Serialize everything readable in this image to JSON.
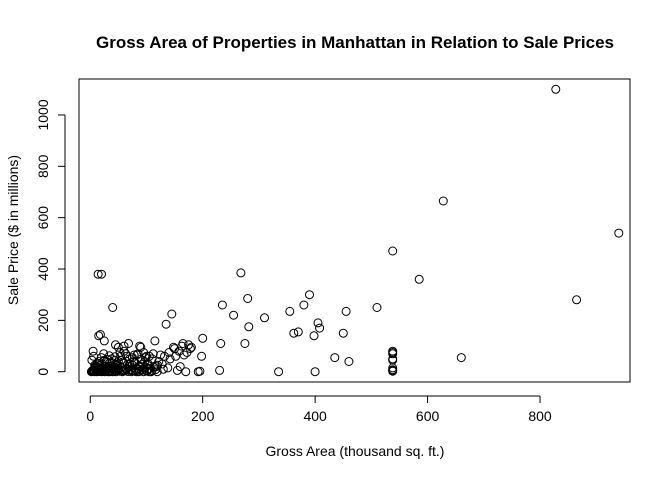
{
  "chart_data": {
    "type": "scatter",
    "title": "Gross Area of Properties in Manhattan in Relation to Sale Prices",
    "xlabel": "Gross Area (thousand sq. ft.)",
    "ylabel": "Sale Price ($ in millions)",
    "xlim": [
      -20,
      960
    ],
    "ylim": [
      -40,
      1140
    ],
    "xticks": [
      0,
      200,
      400,
      600,
      800
    ],
    "yticks": [
      0,
      200,
      400,
      600,
      800,
      1000
    ],
    "grid": false,
    "legend": "none",
    "marker": "open-circle",
    "points": [
      [
        2,
        0
      ],
      [
        3,
        2
      ],
      [
        4,
        5
      ],
      [
        5,
        1
      ],
      [
        6,
        8
      ],
      [
        7,
        3
      ],
      [
        8,
        0
      ],
      [
        9,
        12
      ],
      [
        10,
        4
      ],
      [
        11,
        6
      ],
      [
        12,
        0
      ],
      [
        13,
        18
      ],
      [
        14,
        2
      ],
      [
        15,
        9
      ],
      [
        16,
        1
      ],
      [
        17,
        25
      ],
      [
        18,
        3
      ],
      [
        19,
        14
      ],
      [
        20,
        0
      ],
      [
        21,
        7
      ],
      [
        22,
        30
      ],
      [
        23,
        2
      ],
      [
        24,
        10
      ],
      [
        25,
        5
      ],
      [
        26,
        0
      ],
      [
        27,
        20
      ],
      [
        28,
        3
      ],
      [
        29,
        40
      ],
      [
        30,
        8
      ],
      [
        31,
        1
      ],
      [
        32,
        15
      ],
      [
        33,
        4
      ],
      [
        34,
        0
      ],
      [
        35,
        22
      ],
      [
        36,
        6
      ],
      [
        37,
        12
      ],
      [
        38,
        2
      ],
      [
        39,
        35
      ],
      [
        40,
        0
      ],
      [
        41,
        9
      ],
      [
        42,
        18
      ],
      [
        43,
        3
      ],
      [
        44,
        45
      ],
      [
        45,
        7
      ],
      [
        46,
        0
      ],
      [
        47,
        28
      ],
      [
        48,
        5
      ],
      [
        50,
        11
      ],
      [
        52,
        2
      ],
      [
        54,
        60
      ],
      [
        55,
        16
      ],
      [
        57,
        0
      ],
      [
        58,
        6
      ],
      [
        60,
        33
      ],
      [
        62,
        4
      ],
      [
        63,
        70
      ],
      [
        65,
        12
      ],
      [
        67,
        1
      ],
      [
        68,
        20
      ],
      [
        70,
        50
      ],
      [
        72,
        8
      ],
      [
        73,
        0
      ],
      [
        75,
        26
      ],
      [
        77,
        3
      ],
      [
        78,
        40
      ],
      [
        80,
        14
      ],
      [
        82,
        0
      ],
      [
        83,
        65
      ],
      [
        85,
        9
      ],
      [
        87,
        22
      ],
      [
        88,
        2
      ],
      [
        90,
        48
      ],
      [
        92,
        6
      ],
      [
        93,
        30
      ],
      [
        95,
        0
      ],
      [
        96,
        15
      ],
      [
        98,
        55
      ],
      [
        100,
        4
      ],
      [
        102,
        25
      ],
      [
        104,
        10
      ],
      [
        105,
        0
      ],
      [
        5,
        80
      ],
      [
        8,
        25
      ],
      [
        15,
        40
      ],
      [
        20,
        55
      ],
      [
        25,
        45
      ],
      [
        30,
        48
      ],
      [
        35,
        35
      ],
      [
        38,
        50
      ],
      [
        45,
        30
      ],
      [
        48,
        25
      ],
      [
        50,
        40
      ],
      [
        55,
        45
      ],
      [
        60,
        80
      ],
      [
        65,
        60
      ],
      [
        68,
        110
      ],
      [
        70,
        30
      ],
      [
        75,
        55
      ],
      [
        78,
        65
      ],
      [
        85,
        70
      ],
      [
        88,
        100
      ],
      [
        90,
        95
      ],
      [
        95,
        75
      ],
      [
        100,
        60
      ],
      [
        105,
        60
      ],
      [
        110,
        50
      ],
      [
        112,
        70
      ],
      [
        115,
        120
      ],
      [
        118,
        20
      ],
      [
        120,
        25
      ],
      [
        122,
        40
      ],
      [
        125,
        65
      ],
      [
        128,
        30
      ],
      [
        130,
        10
      ],
      [
        132,
        60
      ],
      [
        135,
        185
      ],
      [
        138,
        15
      ],
      [
        140,
        75
      ],
      [
        142,
        50
      ],
      [
        145,
        225
      ],
      [
        148,
        95
      ],
      [
        150,
        90
      ],
      [
        152,
        60
      ],
      [
        155,
        5
      ],
      [
        158,
        80
      ],
      [
        160,
        20
      ],
      [
        163,
        100
      ],
      [
        165,
        110
      ],
      [
        167,
        65
      ],
      [
        170,
        0
      ],
      [
        172,
        75
      ],
      [
        175,
        105
      ],
      [
        178,
        90
      ],
      [
        180,
        95
      ],
      [
        192,
        0
      ],
      [
        195,
        2
      ],
      [
        198,
        60
      ],
      [
        200,
        130
      ],
      [
        230,
        5
      ],
      [
        232,
        110
      ],
      [
        235,
        260
      ],
      [
        255,
        220
      ],
      [
        268,
        385
      ],
      [
        275,
        110
      ],
      [
        280,
        285
      ],
      [
        282,
        175
      ],
      [
        310,
        210
      ],
      [
        335,
        0
      ],
      [
        355,
        235
      ],
      [
        362,
        150
      ],
      [
        370,
        155
      ],
      [
        380,
        260
      ],
      [
        390,
        300
      ],
      [
        398,
        140
      ],
      [
        400,
        0
      ],
      [
        405,
        190
      ],
      [
        408,
        170
      ],
      [
        435,
        55
      ],
      [
        450,
        150
      ],
      [
        455,
        235
      ],
      [
        460,
        40
      ],
      [
        510,
        250
      ],
      [
        538,
        470
      ],
      [
        538,
        80
      ],
      [
        538,
        75
      ],
      [
        538,
        70
      ],
      [
        538,
        50
      ],
      [
        538,
        45
      ],
      [
        538,
        15
      ],
      [
        538,
        8
      ],
      [
        538,
        5
      ],
      [
        538,
        2
      ],
      [
        585,
        360
      ],
      [
        628,
        665
      ],
      [
        660,
        55
      ],
      [
        828,
        1100
      ],
      [
        865,
        280
      ],
      [
        940,
        540
      ],
      [
        14,
        380
      ],
      [
        20,
        380
      ],
      [
        15,
        140
      ],
      [
        18,
        145
      ],
      [
        40,
        250
      ],
      [
        25,
        120
      ],
      [
        45,
        105
      ],
      [
        50,
        95
      ],
      [
        60,
        100
      ],
      [
        10,
        15
      ],
      [
        12,
        30
      ],
      [
        22,
        12
      ],
      [
        28,
        5
      ],
      [
        32,
        0
      ],
      [
        36,
        18
      ],
      [
        42,
        8
      ],
      [
        46,
        14
      ],
      [
        52,
        22
      ],
      [
        56,
        3
      ],
      [
        58,
        38
      ],
      [
        64,
        10
      ],
      [
        66,
        28
      ],
      [
        74,
        5
      ],
      [
        76,
        16
      ],
      [
        80,
        35
      ],
      [
        84,
        12
      ],
      [
        86,
        0
      ],
      [
        90,
        20
      ],
      [
        94,
        8
      ],
      [
        97,
        40
      ],
      [
        99,
        18
      ],
      [
        101,
        2
      ],
      [
        103,
        30
      ],
      [
        106,
        12
      ],
      [
        108,
        0
      ],
      [
        110,
        5
      ],
      [
        113,
        18
      ],
      [
        116,
        8
      ],
      [
        119,
        0
      ],
      [
        3,
        45
      ],
      [
        6,
        60
      ],
      [
        9,
        20
      ],
      [
        16,
        32
      ],
      [
        24,
        70
      ],
      [
        34,
        62
      ],
      [
        44,
        58
      ],
      [
        53,
        75
      ]
    ]
  }
}
